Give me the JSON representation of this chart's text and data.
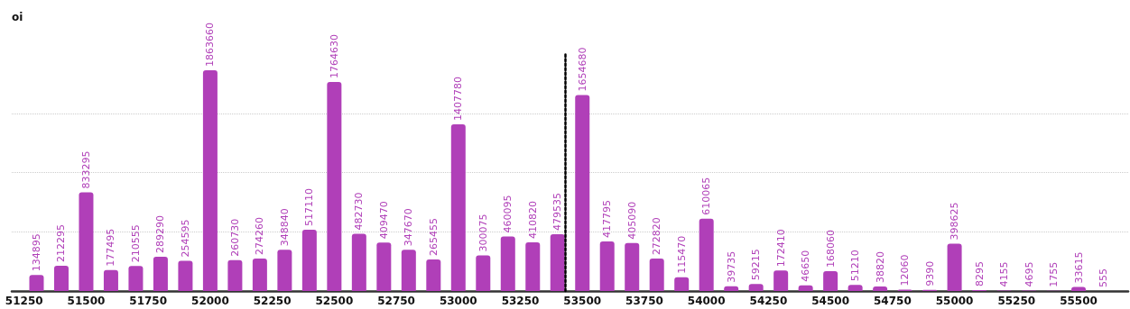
{
  "chart_data": {
    "type": "bar",
    "ylabel": "oi",
    "color": "#b03fb8",
    "x": [
      51300,
      51400,
      51500,
      51600,
      51700,
      51800,
      51900,
      52000,
      52100,
      52200,
      52300,
      52400,
      52500,
      52600,
      52700,
      52800,
      52900,
      53000,
      53100,
      53200,
      53300,
      53400,
      53500,
      53600,
      53700,
      53800,
      53900,
      54000,
      54100,
      54200,
      54300,
      54400,
      54500,
      54600,
      54700,
      54800,
      54900,
      55000,
      55100,
      55200,
      55300,
      55400,
      55500,
      55600
    ],
    "values": [
      134895,
      212295,
      833295,
      177495,
      210555,
      289290,
      254595,
      1863660,
      260730,
      274260,
      348840,
      517110,
      1764630,
      482730,
      409470,
      347670,
      265455,
      1407780,
      300075,
      460095,
      410820,
      479535,
      1654680,
      417795,
      405090,
      272820,
      115470,
      610065,
      39735,
      59215,
      172410,
      46650,
      168060,
      51210,
      38820,
      12060,
      9390,
      398625,
      8295,
      4155,
      4695,
      1755,
      33615,
      555
    ],
    "data_labels": true,
    "xlim": [
      51200,
      55700
    ],
    "xticks": [
      51250,
      51500,
      51750,
      52000,
      52250,
      52500,
      52750,
      53000,
      53250,
      53500,
      53750,
      54000,
      54250,
      54500,
      54750,
      55000,
      55250,
      55500
    ],
    "ylim": [
      0,
      2000000
    ],
    "yticks": [
      {
        "value": 0,
        "label": null
      },
      {
        "value": 500000,
        "label": null
      },
      {
        "value": 1000000,
        "label": null
      },
      {
        "value": 1500000,
        "label": null
      }
    ],
    "tick_labels": "x",
    "grid": "y",
    "ref_lines": [
      {
        "axis": "x",
        "value": 53430,
        "color": "#000000",
        "line_style": "dotted"
      }
    ]
  }
}
